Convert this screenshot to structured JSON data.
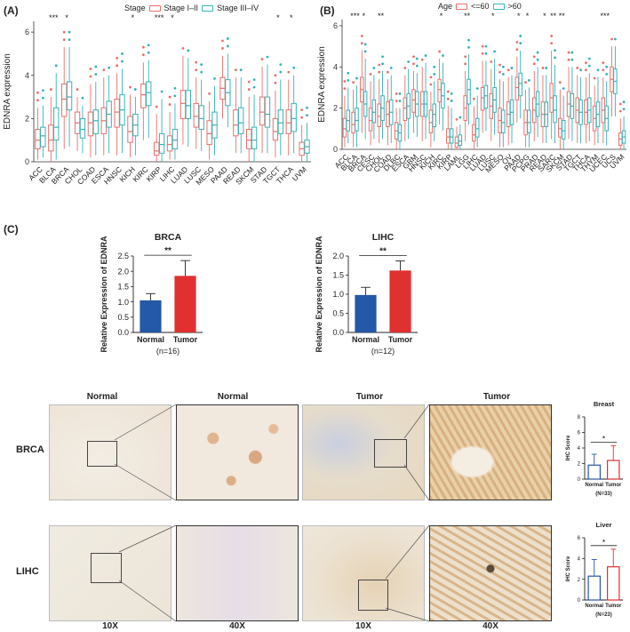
{
  "panelA": {
    "label": "(A)",
    "legend_title": "Stage",
    "legend": [
      {
        "name": "Stage I–II",
        "color": "#e8716e"
      },
      {
        "name": "Stage III–IV",
        "color": "#35b3b8"
      }
    ]
  },
  "panelB": {
    "label": "(B)",
    "legend_title": "Age",
    "legend": [
      {
        "name": "<=60",
        "color": "#e8716e"
      },
      {
        "name": ">60",
        "color": "#35b3b8"
      }
    ]
  },
  "panelC": {
    "label": "(C)"
  },
  "chart_data": [
    {
      "id": "A",
      "type": "box",
      "ylabel": "EDNRA expression",
      "ylim": [
        0,
        6.5
      ],
      "yticks": [
        0,
        2,
        4,
        6
      ],
      "categories": [
        "ACC",
        "BLCA",
        "BRCA",
        "CHOL",
        "COAD",
        "ESCA",
        "HNSC",
        "KICH",
        "KIRC",
        "KIRP",
        "LIHC",
        "LUAD",
        "LUSC",
        "MESO",
        "PAAD",
        "READ",
        "SKCM",
        "STAD",
        "TGCT",
        "THCA",
        "UVM"
      ],
      "significance": [
        "",
        "***",
        "*",
        "",
        "",
        "",
        "",
        "*",
        "",
        "***",
        "*",
        "",
        "",
        "",
        "",
        "",
        "",
        "",
        "*",
        "*",
        ""
      ],
      "series": [
        {
          "name": "Stage I–II",
          "median": [
            1.0,
            1.0,
            2.9,
            1.8,
            1.8,
            1.9,
            2.3,
            1.4,
            3.1,
            0.5,
            0.8,
            2.7,
            2.1,
            1.3,
            3.4,
            1.7,
            1.0,
            2.3,
            1.4,
            1.8,
            0.6
          ],
          "q1": [
            0.6,
            0.5,
            2.1,
            1.3,
            1.2,
            1.3,
            1.6,
            0.9,
            2.5,
            0.3,
            0.5,
            2.0,
            1.6,
            0.8,
            2.9,
            1.2,
            0.6,
            1.7,
            1.0,
            1.3,
            0.3
          ],
          "q3": [
            1.5,
            1.7,
            3.6,
            2.3,
            2.3,
            2.5,
            2.9,
            2.1,
            3.6,
            0.9,
            1.2,
            3.3,
            2.7,
            1.9,
            3.9,
            2.4,
            1.5,
            3.0,
            2.0,
            2.4,
            0.9
          ],
          "min": [
            0.1,
            0.0,
            0.6,
            0.5,
            0.2,
            0.3,
            0.3,
            0.2,
            1.0,
            0.0,
            0.1,
            0.8,
            0.6,
            0.1,
            2.0,
            0.4,
            0.0,
            0.4,
            0.2,
            0.3,
            0.0
          ],
          "max": [
            2.5,
            3.0,
            5.3,
            3.0,
            3.6,
            3.9,
            4.1,
            3.1,
            4.6,
            2.2,
            2.3,
            4.9,
            3.9,
            2.8,
            4.9,
            3.9,
            3.0,
            4.4,
            3.3,
            3.8,
            1.7
          ]
        },
        {
          "name": "Stage III–IV",
          "median": [
            1.2,
            1.6,
            3.0,
            1.5,
            1.9,
            2.2,
            2.4,
            1.7,
            3.2,
            0.8,
            1.0,
            2.6,
            2.0,
            1.7,
            3.2,
            1.8,
            1.0,
            2.2,
            1.8,
            2.0,
            0.7
          ],
          "q1": [
            0.7,
            1.0,
            2.4,
            1.1,
            1.3,
            1.6,
            1.7,
            1.2,
            2.6,
            0.4,
            0.6,
            2.0,
            1.5,
            1.1,
            2.6,
            1.3,
            0.6,
            1.6,
            1.3,
            1.4,
            0.4
          ],
          "q3": [
            1.6,
            2.5,
            3.7,
            2.0,
            2.4,
            2.8,
            3.1,
            2.2,
            3.7,
            1.3,
            1.5,
            3.3,
            2.6,
            2.3,
            3.8,
            2.5,
            1.6,
            3.0,
            2.4,
            2.7,
            1.0
          ],
          "min": [
            0.2,
            0.1,
            0.7,
            0.4,
            0.3,
            0.4,
            0.4,
            0.3,
            1.1,
            0.0,
            0.1,
            0.7,
            0.5,
            0.3,
            1.6,
            0.4,
            0.0,
            0.4,
            0.3,
            0.4,
            0.0
          ],
          "max": [
            2.6,
            4.1,
            5.3,
            2.6,
            3.7,
            4.0,
            4.3,
            3.0,
            4.7,
            2.9,
            2.7,
            4.8,
            3.8,
            3.5,
            5.0,
            3.9,
            3.1,
            4.5,
            3.8,
            4.0,
            1.8
          ]
        }
      ]
    },
    {
      "id": "B",
      "type": "box",
      "ylabel": "EDNRA expression",
      "ylim": [
        0,
        6.3
      ],
      "yticks": [
        0,
        2,
        4,
        6
      ],
      "categories": [
        "ACC",
        "BLCA",
        "BRCA",
        "CESC",
        "CHOL",
        "COAD",
        "DLBC",
        "ESCA",
        "GBM",
        "HNSC",
        "KICH",
        "KIRC",
        "KIRP",
        "LAML",
        "LGG",
        "LIHC",
        "LUAD",
        "LUSC",
        "MESO",
        "OV",
        "PAAD",
        "PCPG",
        "PRAD",
        "READ",
        "SARC",
        "SKCM",
        "STAD",
        "TGCT",
        "THCA",
        "THYM",
        "UCEC",
        "UCS",
        "UVM"
      ],
      "significance": [
        "",
        "***",
        "*",
        "",
        "**",
        "",
        "",
        "",
        "",
        "",
        "",
        "*",
        "",
        "",
        "**",
        "",
        "",
        "*",
        "",
        "",
        "*",
        "*",
        "",
        "*",
        "**",
        "**",
        "",
        "",
        "",
        "",
        "***",
        "",
        ""
      ],
      "series": [
        {
          "name": "<=60",
          "median": [
            1.0,
            1.2,
            2.9,
            1.4,
            1.6,
            1.7,
            0.9,
            2.0,
            2.4,
            2.2,
            1.3,
            2.9,
            0.6,
            0.3,
            2.0,
            0.7,
            2.5,
            2.1,
            1.4,
            1.7,
            3.0,
            1.3,
            1.9,
            1.7,
            2.5,
            1.0,
            2.2,
            1.9,
            1.8,
            1.5,
            1.9,
            3.4,
            0.5
          ],
          "q1": [
            0.6,
            0.8,
            2.3,
            0.9,
            1.1,
            1.1,
            0.5,
            1.4,
            1.8,
            1.6,
            0.8,
            2.3,
            0.3,
            0.1,
            1.4,
            0.4,
            1.9,
            1.5,
            0.8,
            1.1,
            2.4,
            0.7,
            1.3,
            1.1,
            1.8,
            0.6,
            1.6,
            1.3,
            1.2,
            0.9,
            1.3,
            2.8,
            0.2
          ],
          "q3": [
            1.5,
            1.8,
            3.5,
            2.0,
            2.2,
            2.3,
            1.3,
            2.5,
            2.9,
            2.8,
            1.9,
            3.4,
            1.0,
            0.6,
            2.6,
            1.2,
            3.0,
            2.7,
            2.0,
            2.3,
            3.5,
            1.9,
            2.5,
            2.3,
            3.2,
            1.5,
            2.8,
            2.5,
            2.4,
            2.1,
            2.5,
            4.0,
            0.8
          ],
          "min": [
            0.1,
            0.1,
            0.8,
            0.2,
            0.3,
            0.2,
            0.0,
            0.4,
            0.8,
            0.4,
            0.1,
            1.2,
            0.0,
            0.0,
            0.4,
            0.0,
            0.8,
            0.4,
            0.1,
            0.2,
            1.3,
            0.1,
            0.4,
            0.3,
            0.5,
            0.0,
            0.5,
            0.3,
            0.3,
            0.2,
            0.3,
            1.6,
            0.0
          ],
          "max": [
            2.6,
            2.9,
            4.8,
            3.3,
            3.4,
            3.4,
            2.0,
            3.6,
            3.8,
            4.0,
            2.8,
            4.4,
            2.1,
            1.1,
            3.8,
            2.1,
            4.3,
            3.9,
            3.4,
            3.5,
            4.5,
            2.9,
            3.8,
            3.6,
            4.8,
            2.9,
            4.0,
            3.6,
            3.5,
            3.1,
            3.5,
            5.0,
            1.5
          ]
        },
        {
          "name": ">60",
          "median": [
            1.4,
            1.4,
            2.2,
            1.8,
            2.0,
            1.8,
            0.8,
            2.1,
            2.2,
            2.2,
            1.7,
            2.6,
            0.6,
            0.4,
            2.9,
            1.0,
            2.6,
            2.4,
            1.3,
            1.8,
            3.2,
            1.3,
            2.2,
            1.7,
            1.9,
            0.9,
            2.1,
            1.8,
            1.9,
            1.7,
            1.5,
            3.3,
            0.6
          ],
          "q1": [
            0.9,
            0.9,
            1.6,
            1.3,
            1.4,
            1.2,
            0.4,
            1.5,
            1.6,
            1.6,
            1.1,
            2.0,
            0.3,
            0.2,
            2.2,
            0.6,
            2.0,
            1.8,
            0.8,
            1.2,
            2.6,
            0.8,
            1.6,
            1.1,
            1.3,
            0.5,
            1.5,
            1.2,
            1.3,
            1.1,
            0.9,
            2.7,
            0.3
          ],
          "q3": [
            1.9,
            2.0,
            2.8,
            2.4,
            2.6,
            2.4,
            1.2,
            2.7,
            2.8,
            2.8,
            2.2,
            3.2,
            1.0,
            0.7,
            3.4,
            1.5,
            3.1,
            3.0,
            1.9,
            2.4,
            3.7,
            1.9,
            2.8,
            2.3,
            2.6,
            1.4,
            2.7,
            2.4,
            2.5,
            2.3,
            2.1,
            3.9,
            0.9
          ],
          "min": [
            0.3,
            0.1,
            0.5,
            0.5,
            0.5,
            0.3,
            0.0,
            0.5,
            0.6,
            0.5,
            0.4,
            0.9,
            0.0,
            0.0,
            1.2,
            0.1,
            0.9,
            0.7,
            0.1,
            0.3,
            1.5,
            0.1,
            0.6,
            0.3,
            0.3,
            0.0,
            0.4,
            0.3,
            0.4,
            0.3,
            0.2,
            1.6,
            0.0
          ],
          "max": [
            3.0,
            3.1,
            4.4,
            3.6,
            3.8,
            3.6,
            2.0,
            3.9,
            3.7,
            4.2,
            3.3,
            4.2,
            2.0,
            1.2,
            4.6,
            2.6,
            4.3,
            4.4,
            3.3,
            3.6,
            4.8,
            3.0,
            4.0,
            3.6,
            4.1,
            2.6,
            4.0,
            3.5,
            3.7,
            3.5,
            3.3,
            5.0,
            1.6
          ]
        }
      ]
    },
    {
      "id": "C1",
      "type": "bar",
      "title": "BRCA",
      "ylabel": "Relative Expression of EDNRA",
      "ylim": [
        0,
        2.5
      ],
      "yticks": [
        "0.0",
        "0.5",
        "1.0",
        "1.5",
        "2.0",
        "2.5"
      ],
      "categories": [
        "Normal",
        "Tumor"
      ],
      "values": [
        1.05,
        1.85
      ],
      "errors": [
        0.22,
        0.5
      ],
      "colors": [
        "#2458a8",
        "#e03030"
      ],
      "significance": "**",
      "n": "(n=16)"
    },
    {
      "id": "C2",
      "type": "bar",
      "title": "LIHC",
      "ylabel": "Relative Expression of EDNRA",
      "ylim": [
        0,
        2.0
      ],
      "yticks": [
        "0.0",
        "0.5",
        "1.0",
        "1.5",
        "2.0"
      ],
      "categories": [
        "Normal",
        "Tumor"
      ],
      "values": [
        0.98,
        1.62
      ],
      "errors": [
        0.2,
        0.25
      ],
      "colors": [
        "#2458a8",
        "#e03030"
      ],
      "significance": "**",
      "n": "(n=12)"
    },
    {
      "id": "C3",
      "type": "bar",
      "title": "Breast",
      "ylabel": "IHC Score",
      "ylim": [
        0,
        8
      ],
      "yticks": [
        "0",
        "2",
        "4",
        "6",
        "8"
      ],
      "categories": [
        "Normal",
        "Tumor"
      ],
      "values": [
        1.8,
        2.4
      ],
      "errors": [
        1.4,
        1.9
      ],
      "colors": [
        "#2458a8",
        "#e03030"
      ],
      "significance": "*",
      "n": "(N=33)"
    },
    {
      "id": "C4",
      "type": "bar",
      "title": "Liver",
      "ylabel": "IHC Score",
      "ylim": [
        0,
        6
      ],
      "yticks": [
        "0",
        "2",
        "4",
        "6"
      ],
      "categories": [
        "Normal",
        "Tumor"
      ],
      "values": [
        2.3,
        3.2
      ],
      "errors": [
        1.6,
        1.7
      ],
      "colors": [
        "#2458a8",
        "#e03030"
      ],
      "significance": "*",
      "n": "(N=23)"
    }
  ],
  "ihc": {
    "col_labels": [
      "Normal",
      "Normal",
      "Tumor",
      "Tumor"
    ],
    "row_labels": [
      "BRCA",
      "LIHC"
    ],
    "mag_labels": [
      "10X",
      "40X",
      "10X",
      "40X"
    ]
  }
}
